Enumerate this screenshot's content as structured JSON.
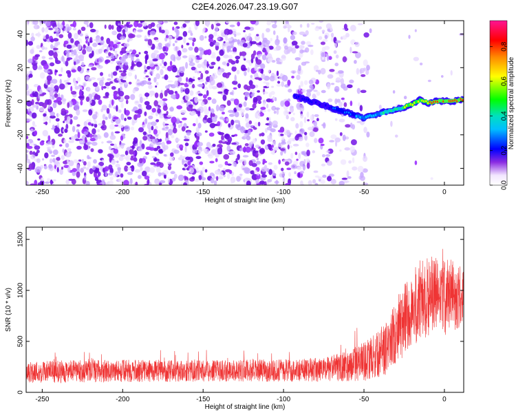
{
  "title": "C2E4.2026.047.23.19.G07",
  "chart_data": [
    {
      "type": "heatmap",
      "xlabel": "Height of straight line (km)",
      "ylabel": "Frequency (Hz)",
      "xlim": [
        -260,
        12
      ],
      "ylim": [
        -50,
        48
      ],
      "xticks": [
        -250,
        -200,
        -150,
        -100,
        -50,
        0
      ],
      "yticks": [
        -40,
        -20,
        0,
        20,
        40
      ],
      "colorbar": {
        "label": "Normalized spectral amplitude",
        "range": [
          0,
          0.95
        ],
        "ticks": [
          "0.0",
          "0.2",
          "0.4",
          "0.6",
          "0.8"
        ]
      },
      "ridge": {
        "description_points_height_km": [
          -93,
          -80,
          -70,
          -60,
          -50,
          -40,
          -30,
          -20,
          -15,
          -10,
          -5,
          0,
          5,
          12
        ],
        "description_points_frequency_hz": [
          3,
          -1,
          -4,
          -7,
          -10,
          -7,
          -5,
          -2,
          1,
          -1,
          0,
          0,
          0,
          1
        ]
      },
      "noise_cutoff_height_km": -45
    },
    {
      "type": "line",
      "xlabel": "Height of straight line (km)",
      "ylabel": "SNR (10 * v/v)",
      "xlim": [
        -260,
        12
      ],
      "ylim": [
        0,
        1620
      ],
      "xticks": [
        -250,
        -200,
        -150,
        -100,
        -50,
        0
      ],
      "yticks": [
        0,
        500,
        1000,
        1500
      ],
      "series": [
        {
          "name": "SNR",
          "color": "#ef3434",
          "envelope_x": [
            -260,
            -200,
            -150,
            -100,
            -75,
            -60,
            -50,
            -40,
            -35,
            -30,
            -20,
            -15,
            -10,
            -5,
            0,
            5,
            12
          ],
          "envelope_mean": [
            200,
            210,
            210,
            215,
            220,
            260,
            300,
            380,
            450,
            600,
            800,
            900,
            950,
            950,
            930,
            960,
            920
          ],
          "envelope_spread": [
            110,
            110,
            105,
            110,
            120,
            150,
            190,
            230,
            270,
            330,
            380,
            420,
            400,
            380,
            380,
            350,
            300
          ]
        }
      ]
    }
  ]
}
